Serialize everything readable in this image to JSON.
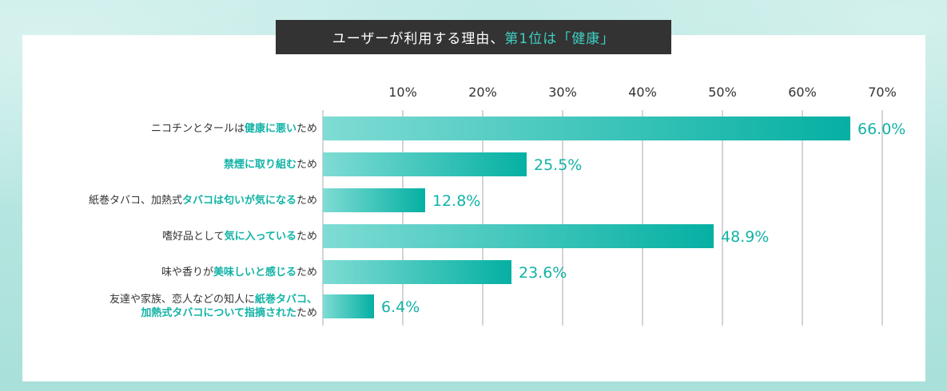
{
  "title": {
    "prefix": "ユーザーが利用する理由、",
    "highlight": "第1位は「健康」"
  },
  "colors": {
    "accent": "#12b3a6",
    "bar_start": "#7fdcd4",
    "bar_end": "#05b0a3",
    "grid": "#aaaaaa",
    "text": "#333333"
  },
  "chart_data": {
    "type": "bar",
    "orientation": "horizontal",
    "title": "ユーザーが利用する理由、第1位は「健康」",
    "x_ticks": [
      "10%",
      "20%",
      "30%",
      "40%",
      "50%",
      "60%",
      "70%"
    ],
    "xlim": [
      0,
      70
    ],
    "categories": [
      {
        "lines": [
          [
            {
              "t": "ニコチンとタールは",
              "h": false
            },
            {
              "t": "健康に悪い",
              "h": true
            },
            {
              "t": "ため",
              "h": false
            }
          ]
        ]
      },
      {
        "lines": [
          [
            {
              "t": "禁煙に取り組む",
              "h": true
            },
            {
              "t": "ため",
              "h": false
            }
          ]
        ]
      },
      {
        "lines": [
          [
            {
              "t": "紙巻タバコ、加熱式",
              "h": false
            },
            {
              "t": "タバコは匂いが気になる",
              "h": true
            },
            {
              "t": "ため",
              "h": false
            }
          ]
        ]
      },
      {
        "lines": [
          [
            {
              "t": "嗜好品として",
              "h": false
            },
            {
              "t": "気に入っている",
              "h": true
            },
            {
              "t": "ため",
              "h": false
            }
          ]
        ]
      },
      {
        "lines": [
          [
            {
              "t": "味や香りが",
              "h": false
            },
            {
              "t": "美味しいと感じる",
              "h": true
            },
            {
              "t": "ため",
              "h": false
            }
          ]
        ]
      },
      {
        "lines": [
          [
            {
              "t": "友達や家族、恋人などの知人に",
              "h": false
            },
            {
              "t": "紙巻タバコ、",
              "h": true
            }
          ],
          [
            {
              "t": "加熱式タバコについて指摘された",
              "h": true
            },
            {
              "t": "ため",
              "h": false
            }
          ]
        ]
      }
    ],
    "values": [
      66.0,
      25.5,
      12.8,
      48.9,
      23.6,
      6.4
    ],
    "value_labels": [
      "66.0%",
      "25.5%",
      "12.8%",
      "48.9%",
      "23.6%",
      "6.4%"
    ]
  }
}
